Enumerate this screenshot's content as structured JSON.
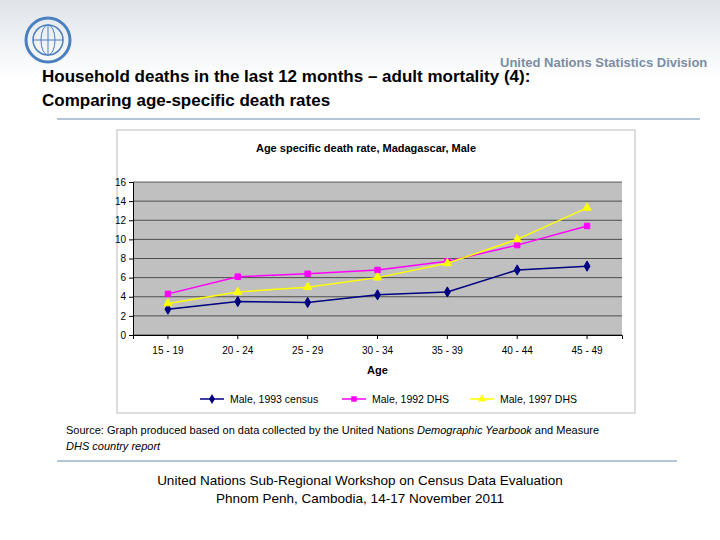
{
  "header": {
    "organization": "United Nations Statistics Division",
    "title": [
      "Household deaths in the last 12 months – adult mortality (4):",
      "Comparing age-specific death rates"
    ]
  },
  "chart_data": {
    "type": "line",
    "title": "Age specific death rate, Madagascar, Male",
    "x_label": "Age",
    "categories": [
      "15 - 19",
      "20 - 24",
      "25 - 29",
      "30 - 34",
      "35 - 39",
      "40 - 44",
      "45 - 49"
    ],
    "series": [
      {
        "name": "Male, 1993 census",
        "color": "#000080",
        "marker": "diamond",
        "values": [
          2.7,
          3.5,
          3.4,
          4.2,
          4.5,
          6.8,
          7.2
        ]
      },
      {
        "name": "Male, 1992 DHS",
        "color": "#ff00ff",
        "marker": "square",
        "values": [
          4.3,
          6.1,
          6.4,
          6.8,
          7.7,
          9.4,
          11.4
        ]
      },
      {
        "name": "Male, 1997 DHS",
        "color": "#ffff00",
        "marker": "triangle",
        "values": [
          3.3,
          4.5,
          5.0,
          6.0,
          7.5,
          10.0,
          13.3
        ]
      }
    ],
    "ylim": [
      0,
      16
    ],
    "yticks": [
      0,
      2,
      4,
      6,
      8,
      10,
      12,
      14,
      16
    ],
    "grid": true,
    "legend": "bottom"
  },
  "source": [
    [
      {
        "text": "Source: Graph produced based on data collected by the United Nations ",
        "italic": false
      },
      {
        "text": "Demographic Yearbook",
        "italic": true
      },
      {
        "text": " and Measure",
        "italic": false
      }
    ],
    [
      {
        "text": "DHS country report",
        "italic": true
      }
    ]
  ],
  "footer": [
    "United Nations Sub-Regional Workshop on Census Data Evaluation",
    "Phnom Penh, Cambodia, 14-17 November 2011"
  ]
}
